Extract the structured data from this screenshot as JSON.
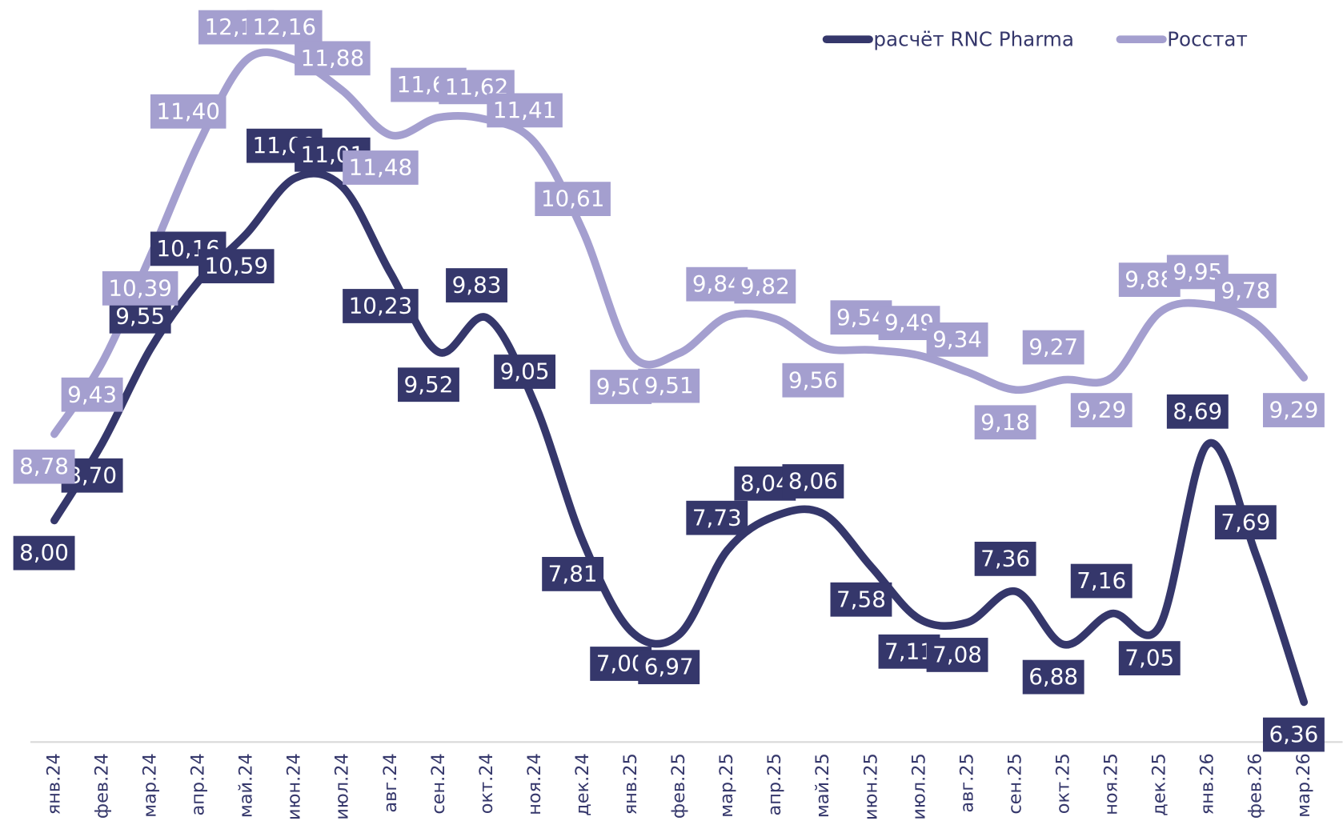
{
  "chart_data": {
    "type": "line",
    "categories": [
      "янв.24",
      "фев.24",
      "мар.24",
      "апр.24",
      "май.24",
      "июн.24",
      "июл.24",
      "авг.24",
      "сен.24",
      "окт.24",
      "ноя.24",
      "дек.24",
      "янв.25",
      "фев.25",
      "мар.25",
      "апр.25",
      "май.25",
      "июн.25",
      "июл.25",
      "авг.25",
      "сен.25",
      "окт.25",
      "ноя.25",
      "дек.25",
      "янв.26",
      "фев.26",
      "мар.26"
    ],
    "series": [
      {
        "name": "расчёт RNC Pharma",
        "color": "#35376b",
        "values": [
          8.0,
          8.7,
          9.55,
          10.16,
          10.59,
          11.09,
          11.01,
          10.23,
          9.52,
          9.83,
          9.05,
          7.81,
          7.0,
          6.97,
          7.73,
          8.04,
          8.06,
          7.58,
          7.11,
          7.08,
          7.36,
          6.88,
          7.16,
          7.05,
          8.69,
          7.69,
          6.36
        ],
        "value_labels": [
          "8,00",
          "8,70",
          "9,55",
          "10,16",
          "10,59",
          "11,09",
          "11,01",
          "10,23",
          "9,52",
          "9,83",
          "9,05",
          "7,81",
          "7,00",
          "6,97",
          "7,73",
          "8,04",
          "8,06",
          "7,58",
          "7,11",
          "7,08",
          "7,36",
          "6,88",
          "7,16",
          "7,05",
          "8,69",
          "7,69",
          "6,36"
        ]
      },
      {
        "name": "Росстат",
        "color": "#a49fcf",
        "values": [
          8.78,
          9.43,
          10.39,
          11.4,
          12.16,
          12.16,
          11.88,
          11.48,
          11.64,
          11.62,
          11.41,
          10.61,
          9.5,
          9.51,
          9.84,
          9.82,
          9.56,
          9.54,
          9.49,
          9.34,
          9.18,
          9.27,
          9.29,
          9.88,
          9.95,
          9.78,
          9.29
        ],
        "value_labels": [
          "8,78",
          "9,43",
          "10,39",
          "11,40",
          "12,16",
          "12,16",
          "11,88",
          "11,48",
          "11,64",
          "11,62",
          "11,41",
          "10,61",
          "9,50",
          "9,51",
          "9,84",
          "9,82",
          "9,56",
          "9,54",
          "9,49",
          "9,34",
          "9,18",
          "9,27",
          "9,29",
          "9,88",
          "9,95",
          "9,78",
          "9,29"
        ]
      }
    ],
    "ylim": [
      6,
      12.7
    ],
    "legend": "top-right"
  }
}
